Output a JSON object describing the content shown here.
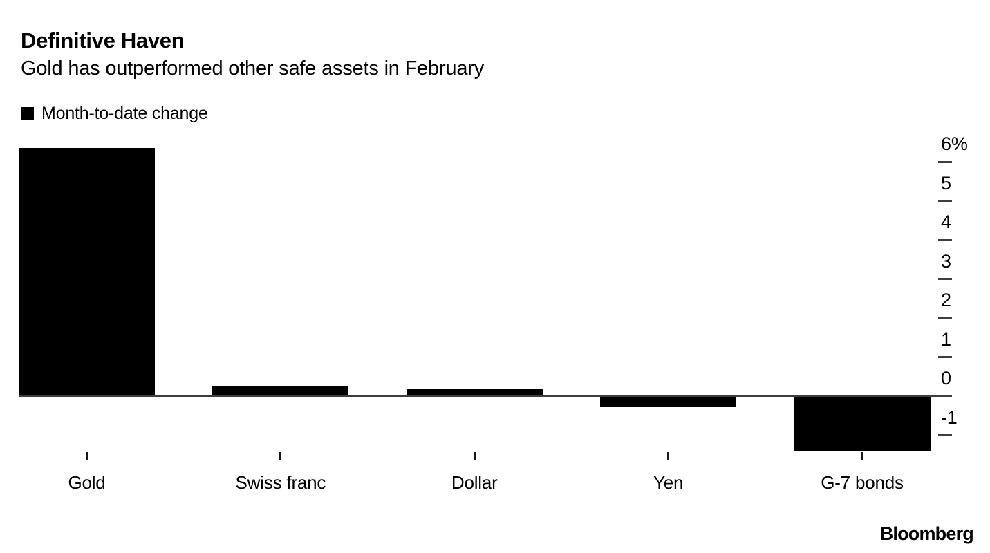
{
  "header": {
    "title": "Definitive Haven",
    "subtitle": "Gold has outperformed other safe assets in February"
  },
  "legend": {
    "label": "Month-to-date change",
    "swatch_color": "#000000"
  },
  "chart_data": {
    "type": "bar",
    "title": "Definitive Haven",
    "subtitle": "Gold has outperformed other safe assets in February",
    "series_name": "Month-to-date change",
    "categories": [
      "Gold",
      "Swiss franc",
      "Dollar",
      "Yen",
      "G-7 bonds"
    ],
    "values": [
      6.35,
      0.27,
      0.18,
      -0.28,
      -1.4
    ],
    "unit": "%",
    "xlabel": "",
    "ylabel": "",
    "ylim": [
      -1.6,
      6.55
    ],
    "y_ticks": [
      6,
      5,
      4,
      3,
      2,
      1,
      0,
      -1
    ],
    "y_tick_labels": [
      "6%",
      "5",
      "4",
      "3",
      "2",
      "1",
      "0",
      "-1"
    ],
    "y_axis_side": "right",
    "grid": false,
    "legend_position": "top-left",
    "bar_color": "#000000",
    "axis_color": "#3d3d3d"
  },
  "footer": {
    "brand": "Bloomberg"
  }
}
